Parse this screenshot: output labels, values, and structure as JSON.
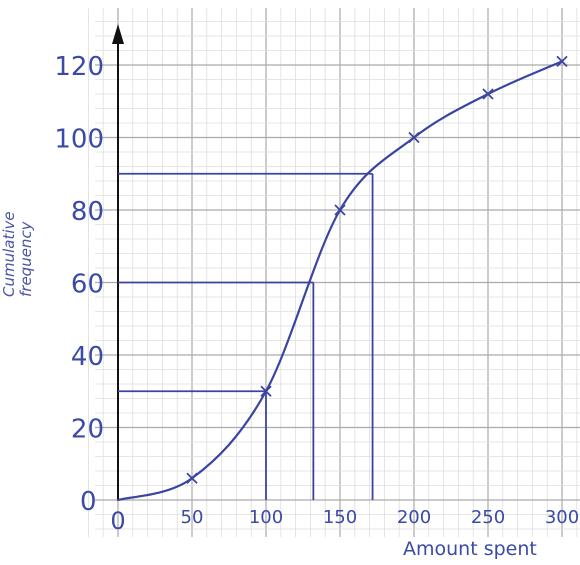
{
  "chart_data": {
    "type": "line",
    "xlabel": "Amount spent",
    "ylabel": [
      "Cumulative",
      "frequency"
    ],
    "xlim": [
      0,
      300
    ],
    "ylim": [
      0,
      130
    ],
    "x_ticks": [
      "0",
      "50",
      "100",
      "150",
      "200",
      "250",
      "300"
    ],
    "y_ticks": [
      "0",
      "20",
      "40",
      "60",
      "80",
      "100",
      "120"
    ],
    "grid": true,
    "series": [
      {
        "x": [
          0,
          50,
          100,
          150,
          200,
          250,
          300
        ],
        "y": [
          0,
          6,
          30,
          80,
          100,
          112,
          121
        ]
      }
    ],
    "reading_lines": [
      {
        "y": 30,
        "x": 100
      },
      {
        "y": 60,
        "x": 132
      },
      {
        "y": 90,
        "x": 172
      }
    ],
    "colors": {
      "curve": "#3b45a0",
      "text": "#3b4aa6",
      "grid_major": "#a9aba9",
      "grid_minor": "#dcdedc"
    }
  }
}
